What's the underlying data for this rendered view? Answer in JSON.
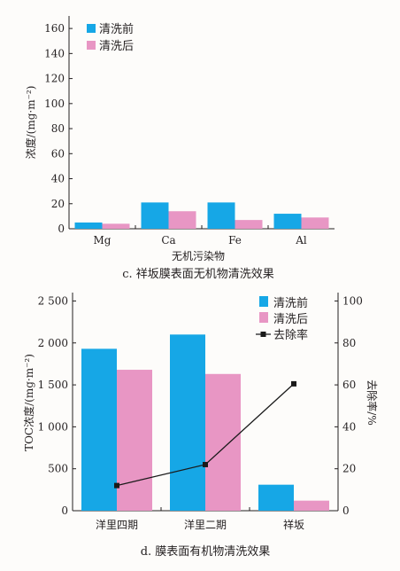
{
  "colors": {
    "before": "#16a7e6",
    "after": "#e896c4",
    "rate": "#1a1a1a"
  },
  "chart_data": [
    {
      "type": "bar",
      "caption": "c. 祥坂膜表面无机物清洗效果",
      "xlabel": "无机污染物",
      "ylabel": "浓度/(mg·m⁻²)",
      "categories": [
        "Mg",
        "Ca",
        "Fe",
        "Al"
      ],
      "series": [
        {
          "name": "清洗前",
          "values": [
            5,
            21,
            21,
            12
          ]
        },
        {
          "name": "清洗后",
          "values": [
            4,
            14,
            7,
            9
          ]
        }
      ],
      "ylim": [
        0,
        170
      ],
      "yticks": [
        0,
        20,
        40,
        60,
        80,
        100,
        120,
        140,
        160
      ],
      "yticklabels": [
        "0",
        "20",
        "40",
        "60",
        "80",
        "100",
        "120",
        "140",
        "160"
      ],
      "legend_position": "top-left",
      "grid": false
    },
    {
      "type": "bar",
      "caption": "d. 膜表面有机物清洗效果",
      "ylabel": "TOC浓度/(mg·m⁻²)",
      "y2label": "去除率/%",
      "categories": [
        "洋里四期",
        "洋里二期",
        "祥坂"
      ],
      "series": [
        {
          "name": "清洗前",
          "values": [
            1930,
            2100,
            310
          ]
        },
        {
          "name": "清洗后",
          "values": [
            1680,
            1630,
            120
          ]
        }
      ],
      "line_series": {
        "name": "去除率",
        "axis": "right",
        "values": [
          12,
          22,
          60.5
        ]
      },
      "ylim": [
        0,
        2600
      ],
      "yticks": [
        0,
        500,
        1000,
        1500,
        2000,
        2500
      ],
      "yticklabels": [
        "0",
        "500",
        "1 000",
        "1 500",
        "2 000",
        "2 500"
      ],
      "y2lim": [
        0,
        104
      ],
      "y2ticks": [
        0,
        20,
        40,
        60,
        80,
        100
      ],
      "y2ticklabels": [
        "0",
        "20",
        "40",
        "60",
        "80",
        "100"
      ],
      "legend_position": "top-right",
      "grid": false
    }
  ]
}
